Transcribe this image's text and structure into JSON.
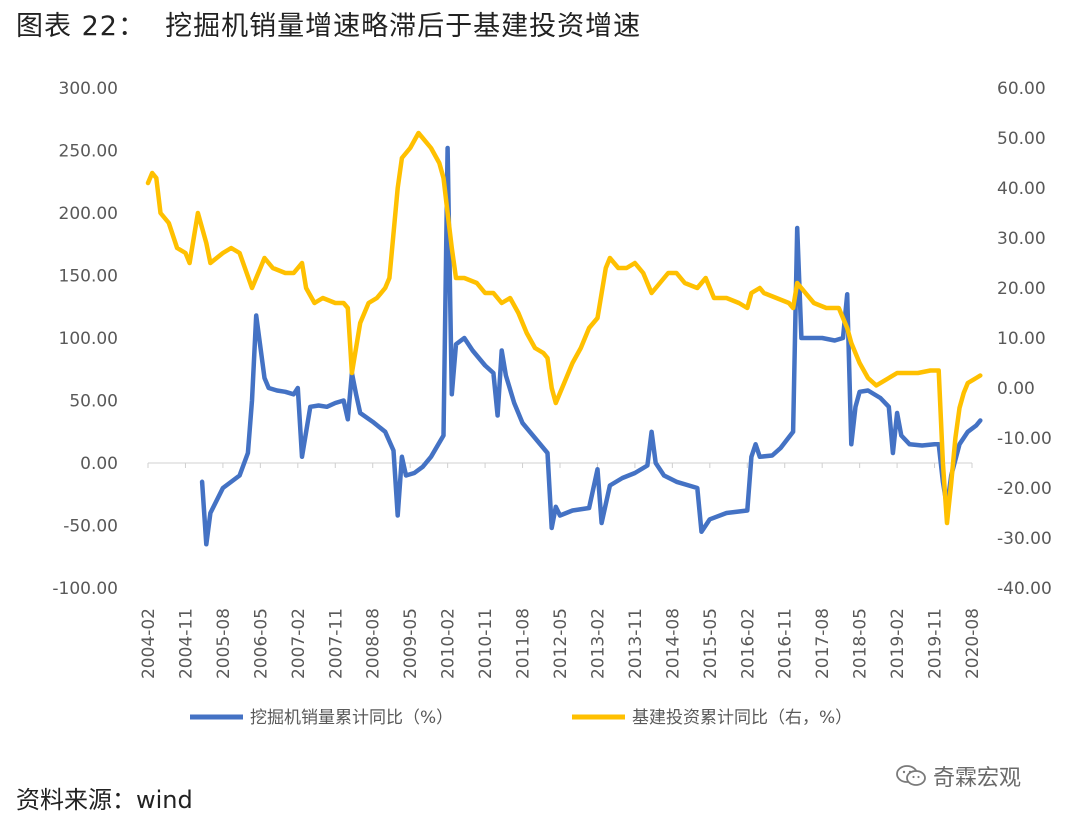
{
  "page": {
    "title": "图表 22：  挖掘机销量增速略滞后于基建投资增速",
    "source": "资料来源：wind",
    "watermark": "奇霖宏观"
  },
  "chart_data": {
    "type": "line",
    "title": "",
    "y_left": {
      "ylim": [
        -100,
        300
      ],
      "ticks": [
        "-100.00",
        "-50.00",
        "0.00",
        "50.00",
        "100.00",
        "150.00",
        "200.00",
        "250.00",
        "300.00"
      ]
    },
    "y_right": {
      "ylim": [
        -40,
        60
      ],
      "ticks": [
        "-40.00",
        "-30.00",
        "-20.00",
        "-10.00",
        "0.00",
        "10.00",
        "20.00",
        "30.00",
        "40.00",
        "50.00",
        "60.00"
      ]
    },
    "x_tick_labels": [
      "2004-02",
      "2004-11",
      "2005-08",
      "2006-05",
      "2007-02",
      "2007-11",
      "2008-08",
      "2009-05",
      "2010-02",
      "2010-11",
      "2011-08",
      "2012-05",
      "2013-02",
      "2013-11",
      "2014-08",
      "2015-05",
      "2016-02",
      "2016-11",
      "2017-08",
      "2018-05",
      "2019-02",
      "2019-11",
      "2020-08"
    ],
    "x_range": [
      "2004-02",
      "2020-08"
    ],
    "legend": {
      "position": "bottom"
    },
    "series": [
      {
        "name": "挖掘机销量累计同比（%）",
        "axis": "left",
        "color": "#4472C4",
        "points": [
          [
            "2005-03",
            -15
          ],
          [
            "2005-04",
            -65
          ],
          [
            "2005-05",
            -40
          ],
          [
            "2005-08",
            -20
          ],
          [
            "2005-12",
            -10
          ],
          [
            "2006-02",
            8
          ],
          [
            "2006-03",
            50
          ],
          [
            "2006-04",
            118
          ],
          [
            "2006-06",
            68
          ],
          [
            "2006-07",
            60
          ],
          [
            "2006-09",
            58
          ],
          [
            "2006-11",
            57
          ],
          [
            "2007-01",
            55
          ],
          [
            "2007-02",
            60
          ],
          [
            "2007-03",
            5
          ],
          [
            "2007-05",
            45
          ],
          [
            "2007-07",
            46
          ],
          [
            "2007-09",
            45
          ],
          [
            "2007-11",
            48
          ],
          [
            "2008-01",
            50
          ],
          [
            "2008-02",
            35
          ],
          [
            "2008-03",
            72
          ],
          [
            "2008-04",
            55
          ],
          [
            "2008-05",
            40
          ],
          [
            "2008-08",
            33
          ],
          [
            "2008-11",
            25
          ],
          [
            "2009-01",
            10
          ],
          [
            "2009-02",
            -42
          ],
          [
            "2009-03",
            5
          ],
          [
            "2009-04",
            -10
          ],
          [
            "2009-06",
            -8
          ],
          [
            "2009-08",
            -3
          ],
          [
            "2009-10",
            5
          ],
          [
            "2010-01",
            22
          ],
          [
            "2010-02",
            252
          ],
          [
            "2010-03",
            55
          ],
          [
            "2010-04",
            95
          ],
          [
            "2010-06",
            100
          ],
          [
            "2010-08",
            90
          ],
          [
            "2010-11",
            78
          ],
          [
            "2011-01",
            72
          ],
          [
            "2011-02",
            38
          ],
          [
            "2011-03",
            90
          ],
          [
            "2011-04",
            70
          ],
          [
            "2011-06",
            48
          ],
          [
            "2011-08",
            32
          ],
          [
            "2011-11",
            20
          ],
          [
            "2012-02",
            8
          ],
          [
            "2012-03",
            -52
          ],
          [
            "2012-04",
            -35
          ],
          [
            "2012-05",
            -42
          ],
          [
            "2012-08",
            -38
          ],
          [
            "2012-12",
            -36
          ],
          [
            "2013-02",
            -5
          ],
          [
            "2013-03",
            -48
          ],
          [
            "2013-05",
            -18
          ],
          [
            "2013-08",
            -12
          ],
          [
            "2013-11",
            -8
          ],
          [
            "2014-02",
            -2
          ],
          [
            "2014-03",
            25
          ],
          [
            "2014-04",
            0
          ],
          [
            "2014-06",
            -10
          ],
          [
            "2014-09",
            -15
          ],
          [
            "2015-02",
            -20
          ],
          [
            "2015-03",
            -55
          ],
          [
            "2015-05",
            -45
          ],
          [
            "2015-09",
            -40
          ],
          [
            "2016-02",
            -38
          ],
          [
            "2016-03",
            5
          ],
          [
            "2016-04",
            15
          ],
          [
            "2016-05",
            5
          ],
          [
            "2016-08",
            6
          ],
          [
            "2016-10",
            12
          ],
          [
            "2017-01",
            25
          ],
          [
            "2017-02",
            188
          ],
          [
            "2017-03",
            100
          ],
          [
            "2017-05",
            100
          ],
          [
            "2017-08",
            100
          ],
          [
            "2017-11",
            98
          ],
          [
            "2018-01",
            100
          ],
          [
            "2018-02",
            135
          ],
          [
            "2018-03",
            15
          ],
          [
            "2018-04",
            45
          ],
          [
            "2018-05",
            57
          ],
          [
            "2018-07",
            58
          ],
          [
            "2018-10",
            52
          ],
          [
            "2018-12",
            45
          ],
          [
            "2019-01",
            8
          ],
          [
            "2019-02",
            40
          ],
          [
            "2019-03",
            22
          ],
          [
            "2019-05",
            15
          ],
          [
            "2019-08",
            14
          ],
          [
            "2019-11",
            15
          ],
          [
            "2019-12",
            15
          ],
          [
            "2020-01",
            -15
          ],
          [
            "2020-02",
            -35
          ],
          [
            "2020-03",
            -10
          ],
          [
            "2020-05",
            15
          ],
          [
            "2020-07",
            25
          ],
          [
            "2020-09",
            30
          ],
          [
            "2020-10",
            34
          ]
        ]
      },
      {
        "name": "基建投资累计同比（右，%）",
        "axis": "right",
        "color": "#FFC000",
        "points": [
          [
            "2004-02",
            41
          ],
          [
            "2004-03",
            43
          ],
          [
            "2004-04",
            42
          ],
          [
            "2004-05",
            35
          ],
          [
            "2004-07",
            33
          ],
          [
            "2004-09",
            28
          ],
          [
            "2004-11",
            27
          ],
          [
            "2004-12",
            25
          ],
          [
            "2005-02",
            35
          ],
          [
            "2005-04",
            29
          ],
          [
            "2005-05",
            25
          ],
          [
            "2005-08",
            27
          ],
          [
            "2005-10",
            28
          ],
          [
            "2005-12",
            27
          ],
          [
            "2006-03",
            20
          ],
          [
            "2006-05",
            24
          ],
          [
            "2006-06",
            26
          ],
          [
            "2006-08",
            24
          ],
          [
            "2006-11",
            23
          ],
          [
            "2007-01",
            23
          ],
          [
            "2007-03",
            25
          ],
          [
            "2007-04",
            20
          ],
          [
            "2007-06",
            17
          ],
          [
            "2007-08",
            18
          ],
          [
            "2007-11",
            17
          ],
          [
            "2008-01",
            17
          ],
          [
            "2008-02",
            16
          ],
          [
            "2008-03",
            3
          ],
          [
            "2008-05",
            13
          ],
          [
            "2008-07",
            17
          ],
          [
            "2008-09",
            18
          ],
          [
            "2008-11",
            20
          ],
          [
            "2008-12",
            22
          ],
          [
            "2009-02",
            40
          ],
          [
            "2009-03",
            46
          ],
          [
            "2009-05",
            48
          ],
          [
            "2009-07",
            51
          ],
          [
            "2009-08",
            50
          ],
          [
            "2009-10",
            48
          ],
          [
            "2009-12",
            45
          ],
          [
            "2010-01",
            42
          ],
          [
            "2010-02",
            35
          ],
          [
            "2010-03",
            28
          ],
          [
            "2010-04",
            22
          ],
          [
            "2010-06",
            22
          ],
          [
            "2010-09",
            21
          ],
          [
            "2010-11",
            19
          ],
          [
            "2011-01",
            19
          ],
          [
            "2011-03",
            17
          ],
          [
            "2011-05",
            18
          ],
          [
            "2011-07",
            15
          ],
          [
            "2011-09",
            11
          ],
          [
            "2011-11",
            8
          ],
          [
            "2012-01",
            7
          ],
          [
            "2012-02",
            6
          ],
          [
            "2012-03",
            0
          ],
          [
            "2012-04",
            -3
          ],
          [
            "2012-06",
            1
          ],
          [
            "2012-08",
            5
          ],
          [
            "2012-10",
            8
          ],
          [
            "2012-12",
            12
          ],
          [
            "2013-02",
            14
          ],
          [
            "2013-04",
            24
          ],
          [
            "2013-05",
            26
          ],
          [
            "2013-07",
            24
          ],
          [
            "2013-09",
            24
          ],
          [
            "2013-11",
            25
          ],
          [
            "2014-01",
            23
          ],
          [
            "2014-03",
            19
          ],
          [
            "2014-05",
            21
          ],
          [
            "2014-07",
            23
          ],
          [
            "2014-09",
            23
          ],
          [
            "2014-11",
            21
          ],
          [
            "2015-02",
            20
          ],
          [
            "2015-04",
            22
          ],
          [
            "2015-06",
            18
          ],
          [
            "2015-09",
            18
          ],
          [
            "2015-12",
            17
          ],
          [
            "2016-02",
            16
          ],
          [
            "2016-03",
            19
          ],
          [
            "2016-05",
            20
          ],
          [
            "2016-06",
            19
          ],
          [
            "2016-09",
            18
          ],
          [
            "2016-12",
            17
          ],
          [
            "2017-01",
            16
          ],
          [
            "2017-02",
            21
          ],
          [
            "2017-04",
            19
          ],
          [
            "2017-06",
            17
          ],
          [
            "2017-09",
            16
          ],
          [
            "2017-12",
            16
          ],
          [
            "2018-02",
            12
          ],
          [
            "2018-03",
            9
          ],
          [
            "2018-05",
            5
          ],
          [
            "2018-07",
            2
          ],
          [
            "2018-09",
            0.5
          ],
          [
            "2018-12",
            2
          ],
          [
            "2019-02",
            3
          ],
          [
            "2019-04",
            3
          ],
          [
            "2019-07",
            3
          ],
          [
            "2019-10",
            3.5
          ],
          [
            "2019-12",
            3.5
          ],
          [
            "2020-01",
            -15
          ],
          [
            "2020-02",
            -27
          ],
          [
            "2020-03",
            -19
          ],
          [
            "2020-04",
            -10
          ],
          [
            "2020-05",
            -4
          ],
          [
            "2020-06",
            -1
          ],
          [
            "2020-07",
            1
          ],
          [
            "2020-09",
            2
          ],
          [
            "2020-10",
            2.5
          ]
        ]
      }
    ]
  }
}
